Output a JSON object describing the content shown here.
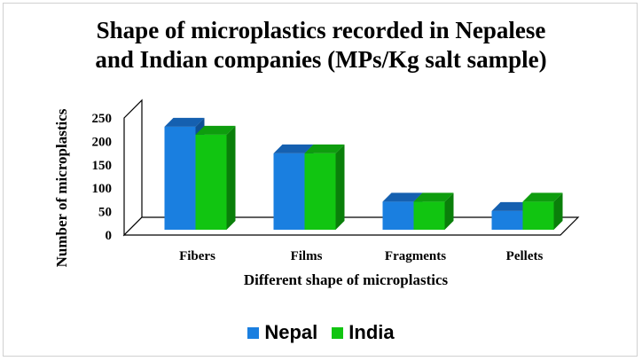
{
  "chart_data": {
    "type": "bar",
    "title_line1": "Shape of microplastics recorded in Nepalese",
    "title_line2": "and Indian companies (MPs/Kg salt sample)",
    "xlabel": "Different shape of microplastics",
    "ylabel": "Number of microplastics",
    "categories": [
      "Fibers",
      "Films",
      "Fragments",
      "Pellets"
    ],
    "series": [
      {
        "name": "Nepal",
        "values": [
          220,
          163,
          60,
          40
        ],
        "color": "#1a7fe0",
        "top_color": "#1560b0",
        "side_color": "#0f4f93"
      },
      {
        "name": "India",
        "values": [
          203,
          163,
          60,
          60
        ],
        "color": "#11c511",
        "top_color": "#0e9d0e",
        "side_color": "#0a7f0a"
      }
    ],
    "yticks": [
      0,
      50,
      100,
      150,
      200,
      250
    ],
    "ylim": [
      0,
      250
    ],
    "grid": false,
    "legend_position": "bottom"
  }
}
